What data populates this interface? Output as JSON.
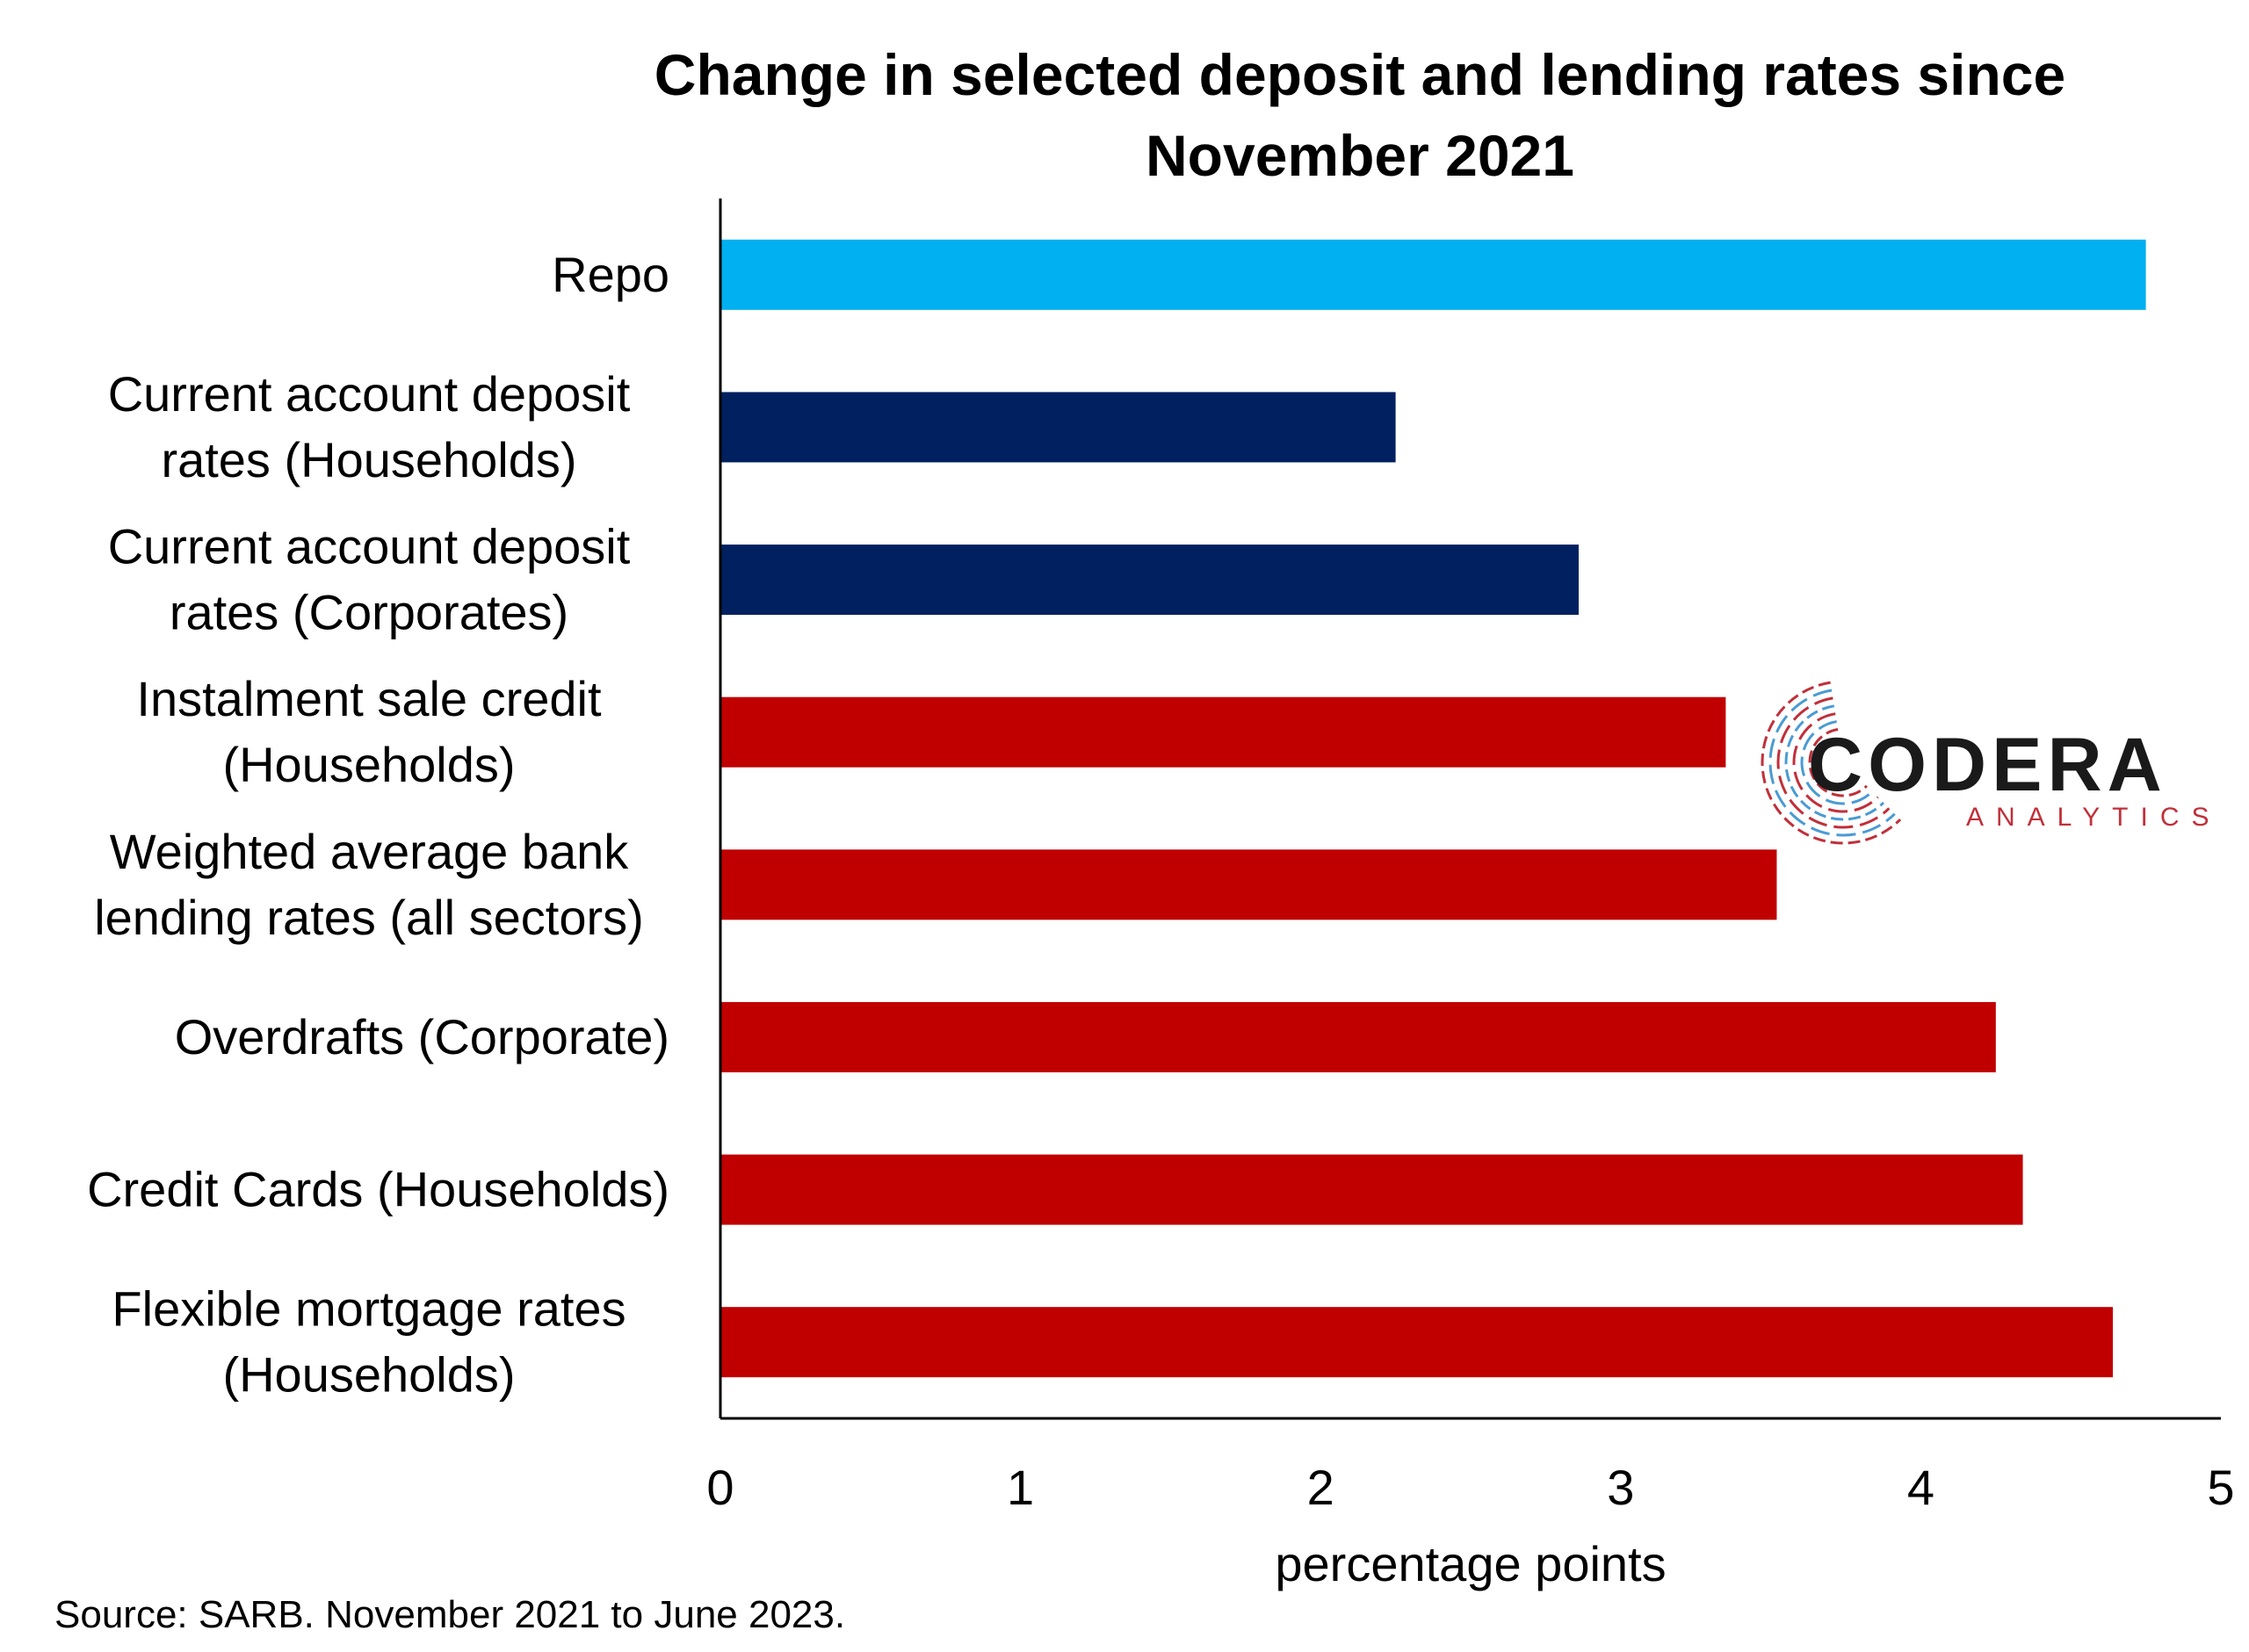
{
  "chart_data": {
    "type": "bar",
    "orientation": "horizontal",
    "title_lines": [
      "Change in selected deposit and lending rates since",
      "November 2021"
    ],
    "categories": [
      {
        "lines": [
          "Repo"
        ],
        "value": 4.75,
        "color": "#00B0F0"
      },
      {
        "lines": [
          "Current account deposit",
          "rates (Households)"
        ],
        "value": 2.25,
        "color": "#002060"
      },
      {
        "lines": [
          "Current account deposit",
          "rates (Corporates)"
        ],
        "value": 2.86,
        "color": "#002060"
      },
      {
        "lines": [
          "Instalment sale credit",
          "(Households)"
        ],
        "value": 3.35,
        "color": "#C00000"
      },
      {
        "lines": [
          "Weighted average bank",
          "lending rates (all sectors)"
        ],
        "value": 3.52,
        "color": "#C00000"
      },
      {
        "lines": [
          "Overdrafts (Corporate)"
        ],
        "value": 4.25,
        "color": "#C00000"
      },
      {
        "lines": [
          "Credit Cards (Households)"
        ],
        "value": 4.34,
        "color": "#C00000"
      },
      {
        "lines": [
          "Flexible mortgage rates",
          "(Households)"
        ],
        "value": 4.64,
        "color": "#C00000"
      }
    ],
    "xlabel": "percentage points",
    "xlim": [
      0,
      5
    ],
    "xticks": [
      "0",
      "1",
      "2",
      "3",
      "4",
      "5"
    ],
    "grid": false,
    "legend": "none"
  },
  "source": "Source: SARB. November 2021 to June 2023.",
  "logo": {
    "name": "CODERA",
    "subtitle": "ANALYTICS",
    "name_color": "#1a1a1a",
    "subtitle_color": "#C0303A",
    "accent_colors": [
      "#C0303A",
      "#4A9BD4"
    ]
  }
}
